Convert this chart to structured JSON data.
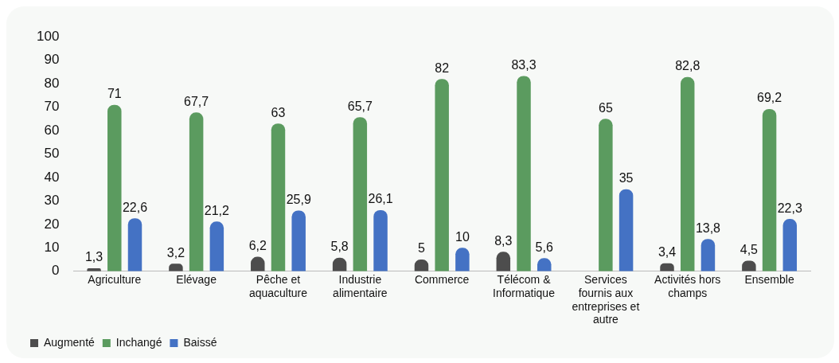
{
  "chart_data": {
    "type": "bar",
    "categories": [
      "Agriculture",
      "Elévage",
      "Pêche et aquaculture",
      "Industrie alimentaire",
      "Commerce",
      "Télécom & Informatique",
      "Services fournis aux entreprises et autre",
      "Activités hors champs",
      "Ensemble"
    ],
    "series": [
      {
        "name": "Augmenté",
        "color": "#4d4d4d",
        "values": [
          1.3,
          3.2,
          6.2,
          5.8,
          5,
          8.3,
          null,
          3.4,
          4.5
        ],
        "value_labels": [
          "1,3",
          "3,2",
          "6,2",
          "5,8",
          "5",
          "8,3",
          null,
          "3,4",
          "4,5"
        ]
      },
      {
        "name": "Inchangé",
        "color": "#5b9b5f",
        "values": [
          71,
          67.7,
          63,
          65.7,
          82,
          83.3,
          65,
          82.8,
          69.2
        ],
        "value_labels": [
          "71",
          "67,7",
          "63",
          "65,7",
          "82",
          "83,3",
          "65",
          "82,8",
          "69,2"
        ]
      },
      {
        "name": "Baissé",
        "color": "#4472c4",
        "values": [
          22.6,
          21.2,
          25.9,
          26.1,
          10,
          5.6,
          35,
          13.8,
          22.3
        ],
        "value_labels": [
          "22,6",
          "21,2",
          "25,9",
          "26,1",
          "10",
          "5,6",
          "35",
          "13,8",
          "22,3"
        ]
      }
    ],
    "ylim": [
      0,
      100
    ],
    "yticks": [
      0,
      10,
      20,
      30,
      40,
      50,
      60,
      70,
      80,
      90,
      100
    ],
    "grid": false,
    "legend": "bottom left"
  }
}
